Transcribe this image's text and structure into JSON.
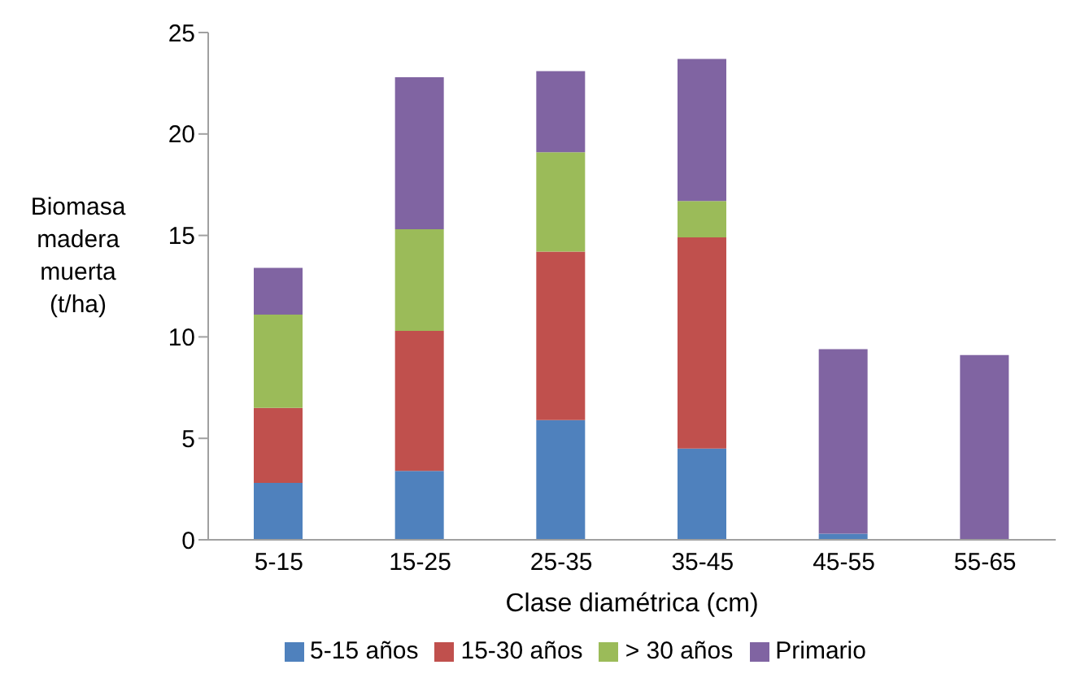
{
  "chart_data": {
    "type": "bar",
    "stacked": true,
    "xlabel": "Clase diamétrica (cm)",
    "ylabel": "Biomasa madera muerta (t/ha)",
    "categories": [
      "5-15",
      "15-25",
      "25-35",
      "35-45",
      "45-55",
      "55-65"
    ],
    "series": [
      {
        "name": "5-15 años",
        "color": "#4f81bd",
        "values": [
          2.8,
          3.4,
          5.9,
          4.5,
          0.3,
          0
        ]
      },
      {
        "name": "15-30 años",
        "color": "#c0504d",
        "values": [
          3.7,
          6.9,
          8.3,
          10.4,
          0,
          0
        ]
      },
      {
        "name": "> 30 años",
        "color": "#9bbb59",
        "values": [
          4.6,
          5.0,
          4.9,
          1.8,
          0,
          0
        ]
      },
      {
        "name": "Primario",
        "color": "#8064a2",
        "values": [
          2.3,
          7.5,
          4.0,
          7.0,
          9.1,
          9.1
        ]
      }
    ],
    "ylim": [
      0,
      25
    ],
    "yticks": [
      0,
      5,
      10,
      15,
      20,
      25
    ],
    "grid": false,
    "legend": "bottom"
  }
}
